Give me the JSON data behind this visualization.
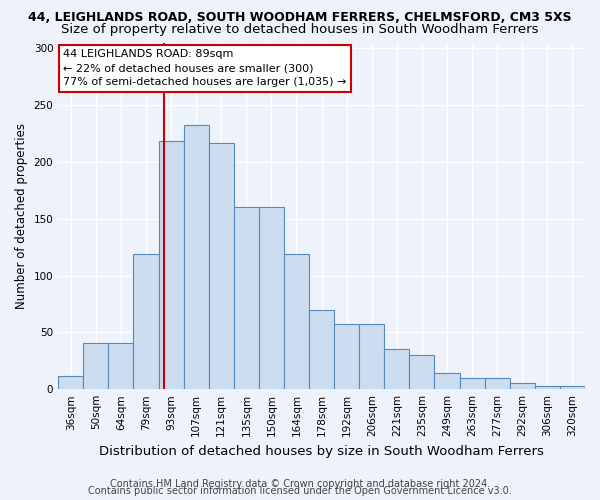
{
  "title": "44, LEIGHLANDS ROAD, SOUTH WOODHAM FERRERS, CHELMSFORD, CM3 5XS",
  "subtitle": "Size of property relative to detached houses in South Woodham Ferrers",
  "xlabel": "Distribution of detached houses by size in South Woodham Ferrers",
  "ylabel": "Number of detached properties",
  "categories": [
    "36sqm",
    "50sqm",
    "64sqm",
    "79sqm",
    "93sqm",
    "107sqm",
    "121sqm",
    "135sqm",
    "150sqm",
    "164sqm",
    "178sqm",
    "192sqm",
    "206sqm",
    "221sqm",
    "235sqm",
    "249sqm",
    "263sqm",
    "277sqm",
    "292sqm",
    "306sqm",
    "320sqm"
  ],
  "values": [
    12,
    41,
    41,
    119,
    218,
    232,
    217,
    160,
    160,
    119,
    70,
    57,
    57,
    35,
    30,
    14,
    10,
    10,
    5,
    3,
    3
  ],
  "bar_color": "#ccddf0",
  "bar_edge_color": "#5588bb",
  "vline_color": "#cc0000",
  "annotation_line1": "44 LEIGHLANDS ROAD: 89sqm",
  "annotation_line2": "← 22% of detached houses are smaller (300)",
  "annotation_line3": "77% of semi-detached houses are larger (1,035) →",
  "annotation_box_facecolor": "#ffffff",
  "annotation_box_edgecolor": "#cc0000",
  "footer1": "Contains HM Land Registry data © Crown copyright and database right 2024.",
  "footer2": "Contains public sector information licensed under the Open Government Licence v3.0.",
  "ylim": [
    0,
    305
  ],
  "yticks": [
    0,
    50,
    100,
    150,
    200,
    250,
    300
  ],
  "background_color": "#eef2fa",
  "grid_color": "#ffffff",
  "title_fontsize": 9.0,
  "subtitle_fontsize": 9.5,
  "xlabel_fontsize": 9.5,
  "ylabel_fontsize": 8.5,
  "tick_fontsize": 7.5,
  "annot_fontsize": 8.0,
  "footer_fontsize": 7.0
}
